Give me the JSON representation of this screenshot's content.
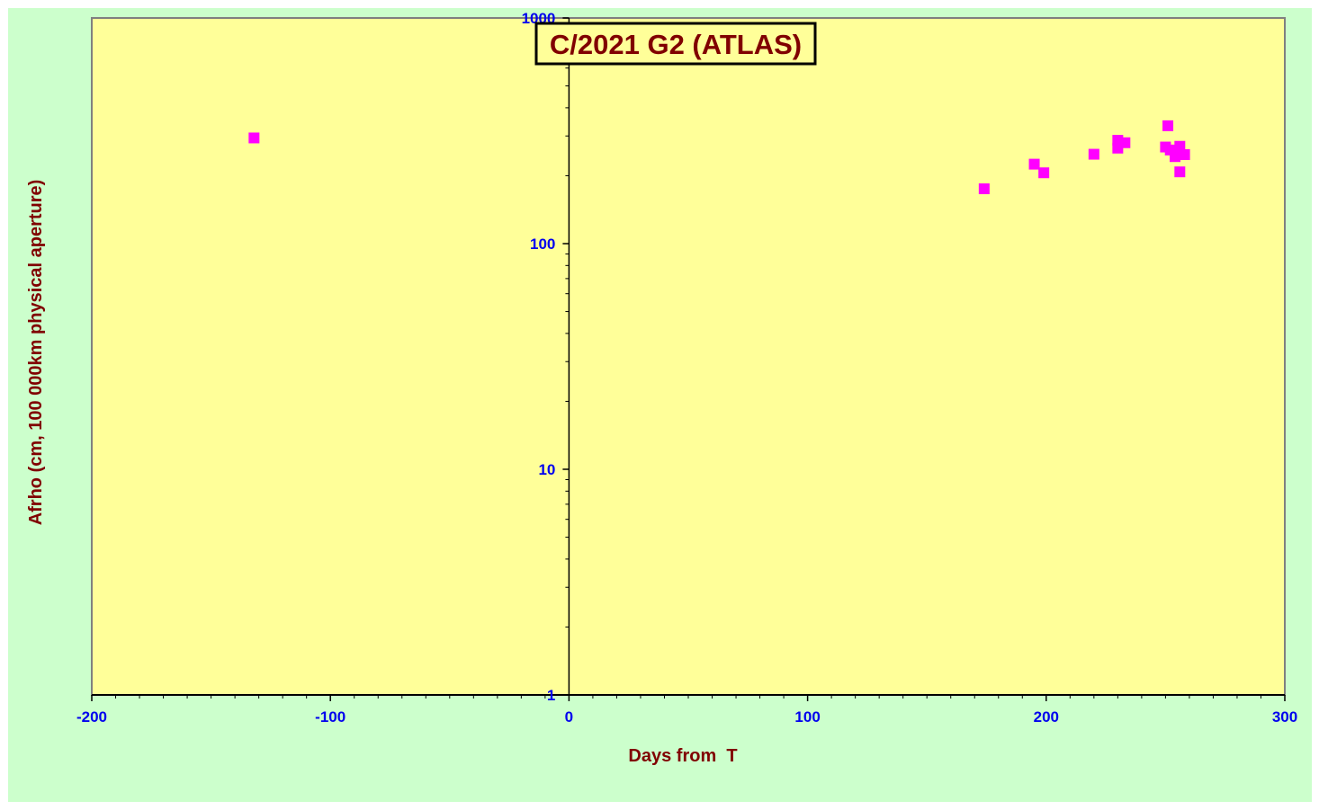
{
  "chart_data": {
    "type": "scatter",
    "title": "C/2021 G2 (ATLAS)",
    "xlabel": "Days from  T",
    "ylabel": "Afrho (cm, 100 000km physical aperture)",
    "xlim": [
      -200,
      300
    ],
    "ylim": [
      1,
      1000
    ],
    "yscale": "log",
    "xticks": [
      -200,
      -100,
      0,
      100,
      200,
      300
    ],
    "xtick_labels": [
      "-200",
      "-100",
      "0",
      "100",
      "200",
      "300"
    ],
    "yticks": [
      1,
      10,
      100,
      1000
    ],
    "ytick_labels": [
      "1",
      "10",
      "100",
      "1000"
    ],
    "grid": false,
    "series": [
      {
        "marker": "square",
        "x": [
          -132,
          174,
          195,
          199,
          220,
          230,
          230,
          233,
          250,
          251,
          252,
          254,
          256,
          256,
          258
        ],
        "y": [
          294,
          175,
          225,
          206,
          249,
          287,
          265,
          280,
          268,
          333,
          260,
          243,
          270,
          208,
          248
        ]
      }
    ]
  },
  "colors": {
    "outer_background": "#ccffcc",
    "plot_background": "#ffff99",
    "marker": "#ff00ff",
    "tick_label": "#0000ee",
    "axis_title": "#800000",
    "axis_line": "#000000",
    "plot_border": "#808080"
  }
}
